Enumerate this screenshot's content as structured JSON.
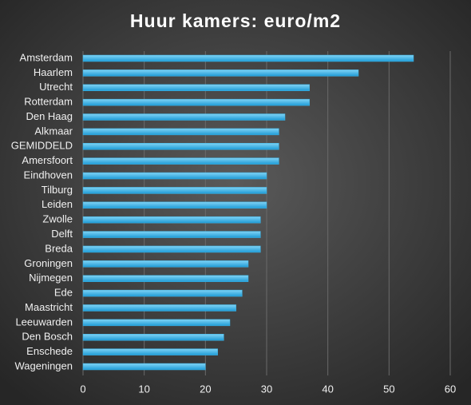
{
  "chart_data": {
    "type": "bar",
    "orientation": "horizontal",
    "title": "Huur kamers: euro/m2",
    "categories": [
      "Amsterdam",
      "Haarlem",
      "Utrecht",
      "Rotterdam",
      "Den Haag",
      "Alkmaar",
      "GEMIDDELD",
      "Amersfoort",
      "Eindhoven",
      "Tilburg",
      "Leiden",
      "Zwolle",
      "Delft",
      "Breda",
      "Groningen",
      "Nijmegen",
      "Ede",
      "Maastricht",
      "Leeuwarden",
      "Den Bosch",
      "Enschede",
      "Wageningen"
    ],
    "values": [
      54,
      45,
      37,
      37,
      33,
      32,
      32,
      32,
      30,
      30,
      30,
      29,
      29,
      29,
      27,
      27,
      26,
      25,
      24,
      23,
      22,
      20
    ],
    "color": "#3db4e6",
    "xlim": [
      0,
      60
    ],
    "xticks": [
      0,
      10,
      20,
      30,
      40,
      50,
      60
    ],
    "grid": true
  }
}
